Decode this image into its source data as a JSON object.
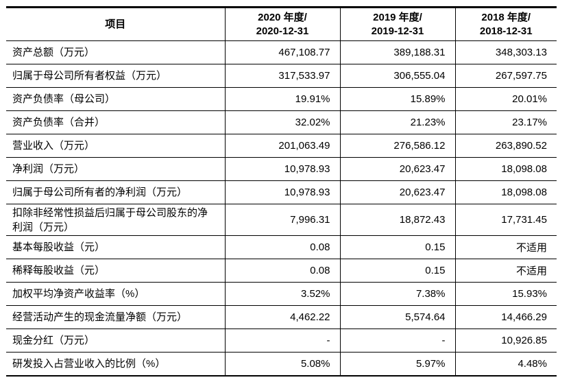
{
  "table": {
    "headers": [
      {
        "line1": "项目",
        "line2": ""
      },
      {
        "line1": "2020 年度/",
        "line2": "2020-12-31"
      },
      {
        "line1": "2019 年度/",
        "line2": "2019-12-31"
      },
      {
        "line1": "2018 年度/",
        "line2": "2018-12-31"
      }
    ],
    "rows": [
      {
        "label": "资产总额（万元）",
        "values": [
          "467,108.77",
          "389,188.31",
          "348,303.13"
        ]
      },
      {
        "label": "归属于母公司所有者权益（万元）",
        "values": [
          "317,533.97",
          "306,555.04",
          "267,597.75"
        ]
      },
      {
        "label": "资产负债率（母公司）",
        "values": [
          "19.91%",
          "15.89%",
          "20.01%"
        ]
      },
      {
        "label": "资产负债率（合并）",
        "values": [
          "32.02%",
          "21.23%",
          "23.17%"
        ]
      },
      {
        "label": "营业收入（万元）",
        "values": [
          "201,063.49",
          "276,586.12",
          "263,890.52"
        ]
      },
      {
        "label": "净利润（万元）",
        "values": [
          "10,978.93",
          "20,623.47",
          "18,098.08"
        ]
      },
      {
        "label": "归属于母公司所有者的净利润（万元）",
        "values": [
          "10,978.93",
          "20,623.47",
          "18,098.08"
        ]
      },
      {
        "label": "扣除非经常性损益后归属于母公司股东的净利润（万元）",
        "values": [
          "7,996.31",
          "18,872.43",
          "17,731.45"
        ]
      },
      {
        "label": "基本每股收益（元）",
        "values": [
          "0.08",
          "0.15",
          "不适用"
        ]
      },
      {
        "label": "稀释每股收益（元）",
        "values": [
          "0.08",
          "0.15",
          "不适用"
        ]
      },
      {
        "label": "加权平均净资产收益率（%）",
        "values": [
          "3.52%",
          "7.38%",
          "15.93%"
        ]
      },
      {
        "label": "经营活动产生的现金流量净额（万元）",
        "values": [
          "4,462.22",
          "5,574.64",
          "14,466.29"
        ]
      },
      {
        "label": "现金分红（万元）",
        "values": [
          "-",
          "-",
          "10,926.85"
        ]
      },
      {
        "label": "研发投入占营业收入的比例（%）",
        "values": [
          "5.08%",
          "5.97%",
          "4.48%"
        ]
      }
    ]
  }
}
